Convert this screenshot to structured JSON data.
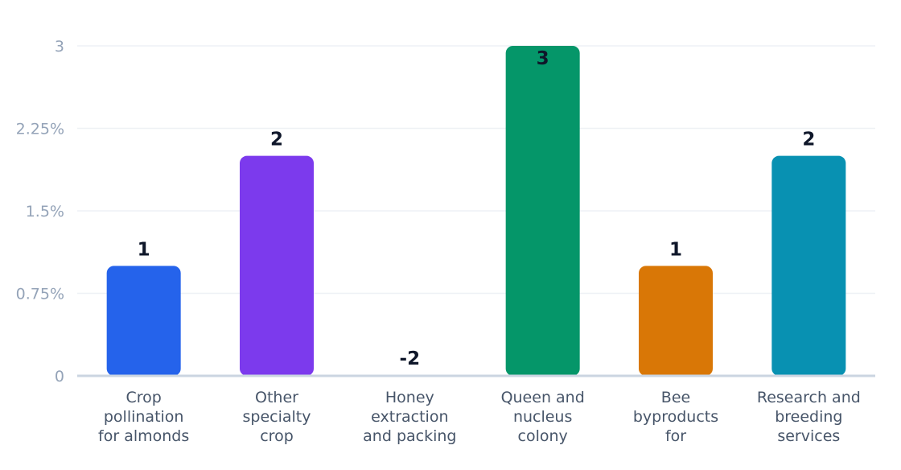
{
  "chart_data": {
    "type": "bar",
    "categories": [
      [
        "Crop",
        "pollination",
        "for almonds"
      ],
      [
        "Other",
        "specialty",
        "crop"
      ],
      [
        "Honey",
        "extraction",
        "and packing"
      ],
      [
        "Queen and",
        "nucleus",
        "colony"
      ],
      [
        "Bee",
        "byproducts",
        "for"
      ],
      [
        "Research and",
        "breeding",
        "services"
      ]
    ],
    "values": [
      1,
      2,
      -2,
      3,
      1,
      2
    ],
    "data_labels": [
      "1",
      "2",
      "-2",
      "3",
      "1",
      "2"
    ],
    "colors": [
      "#2563eb",
      "#7c3aed",
      "#059669",
      "#059669",
      "#d97706",
      "#0891b2"
    ],
    "ylim": [
      0,
      3
    ],
    "yticks": [
      {
        "value": 0,
        "label": "0"
      },
      {
        "value": 0.75,
        "label": "0.75%"
      },
      {
        "value": 1.5,
        "label": "1.5%"
      },
      {
        "value": 2.25,
        "label": "2.25%"
      },
      {
        "value": 3,
        "label": "3"
      }
    ],
    "grid": true,
    "legend": "none"
  }
}
